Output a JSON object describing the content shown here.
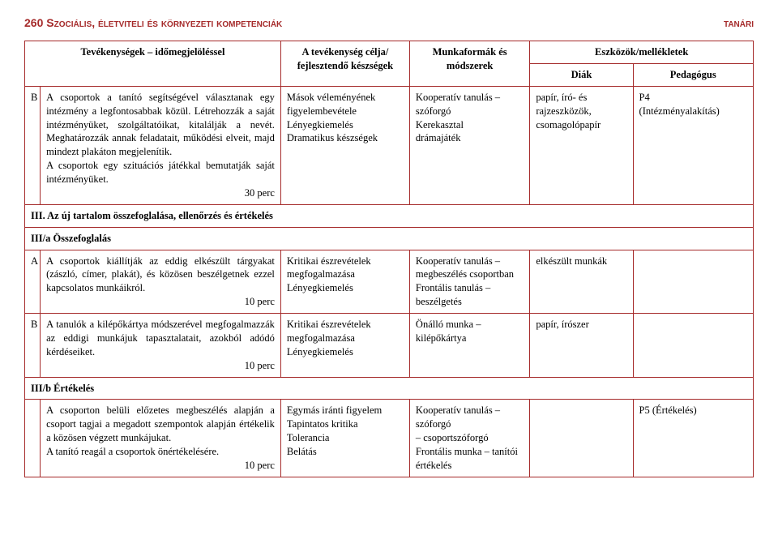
{
  "header": {
    "left": "260  Szociális, életviteli és környezeti kompetenciák",
    "right": "tanári"
  },
  "table": {
    "colHeaders": {
      "activity": "Tevékenységek – időmegjelöléssel",
      "goal": "A tevékenység célja/ fejlesztendő készségek",
      "method": "Munkaformák és módszerek",
      "toolsTop": "Eszközök/mellékletek",
      "diak": "Diák",
      "ped": "Pedagógus"
    },
    "rows": [
      {
        "marker": "B",
        "activity": "A csoportok a tanító segítségével választanak egy intézmény a legfontosabbak közül. Létrehozzák a saját intézményüket, szolgáltatóikat, kitalálják a nevét. Meghatározzák annak feladatait, működési elveit, majd mindezt plakáton megjelenítik.\nA csoportok egy szituációs játékkal bemutatják saját intézményüket.",
        "duration": "30 perc",
        "goal": "Mások véleményének figyelembevétele\nLényegkiemelés\nDramatikus készségek",
        "method": "Kooperatív tanulás – szóforgó\nKerekasztal\ndrámajáték",
        "diak": "papír, író- és rajzeszközök, csomagolópapír",
        "ped": "P4\n(Intézményalakítás)"
      }
    ],
    "section3": "III. Az új tartalom összefoglalása, ellenőrzés és értékelés",
    "section3a": "III/a Összefoglalás",
    "rows2": [
      {
        "marker": "A",
        "activity": "A csoportok kiállítják az eddig elkészült tárgyakat (zászló, címer, plakát), és közösen beszélgetnek ezzel kapcsolatos munkáikról.",
        "duration": "10 perc",
        "goal": "Kritikai észrevételek megfogalmazása\nLényegkiemelés",
        "method": "Kooperatív tanulás – megbeszélés csoportban\nFrontális tanulás – beszélgetés",
        "diak": "elkészült munkák",
        "ped": ""
      },
      {
        "marker": "B",
        "activity": "A tanulók a kilépőkártya módszerével megfogalmazzák az eddigi munkájuk tapasztalatait, azokból adódó kérdéseiket.",
        "duration": "10 perc",
        "goal": "Kritikai észrevételek megfogalmazása\nLényegkiemelés",
        "method": "Önálló munka – kilépőkártya",
        "diak": "papír, írószer",
        "ped": ""
      }
    ],
    "section3b": "III/b Értékelés",
    "rows3": [
      {
        "marker": "",
        "activity": "A csoporton belüli előzetes megbeszélés alapján a csoport tagjai a megadott szempontok alapján értékelik a közösen végzett munkájukat.\nA tanító reagál a csoportok önértékelésére.",
        "duration": "10 perc",
        "goal": "Egymás iránti figyelem\nTapintatos kritika\nTolerancia\nBelátás",
        "method": "Kooperatív tanulás – szóforgó\n– csoportszóforgó\nFrontális munka – tanítói értékelés",
        "diak": "",
        "ped": "P5 (Értékelés)"
      }
    ]
  }
}
